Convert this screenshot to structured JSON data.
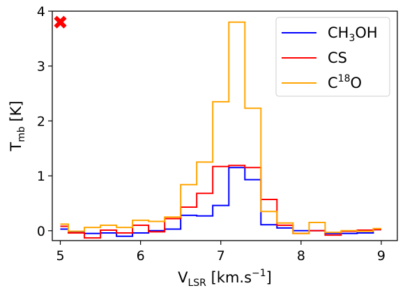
{
  "chart_data": {
    "type": "line",
    "drawstyle": "steps-mid",
    "xlabel": {
      "main": "V",
      "sub": "LSR",
      "rest": " [km.s",
      "sup": "−1",
      "end": "]"
    },
    "ylabel": {
      "main": "T",
      "sub": "mb",
      "rest": " [K]"
    },
    "xlim": [
      4.9,
      9.2
    ],
    "ylim": [
      -0.18,
      4.0
    ],
    "xticks": [
      5,
      6,
      7,
      8,
      9
    ],
    "yticks": [
      0,
      1,
      2,
      3,
      4
    ],
    "legend_position": "top-right",
    "marker": {
      "symbol": "X",
      "x": 5.0,
      "y": 3.8,
      "color": "#ff0000"
    },
    "x": [
      5.0,
      5.2,
      5.4,
      5.6,
      5.8,
      6.0,
      6.2,
      6.4,
      6.6,
      6.8,
      7.0,
      7.2,
      7.4,
      7.6,
      7.8,
      8.0,
      8.2,
      8.4,
      8.6,
      8.8,
      9.0
    ],
    "series": [
      {
        "name": {
          "pre": "CH",
          "sub": "3",
          "post": "OH"
        },
        "color": "#0000ff",
        "values": [
          0.03,
          -0.03,
          -0.05,
          -0.04,
          -0.1,
          -0.04,
          0.0,
          0.03,
          0.28,
          0.27,
          0.46,
          1.15,
          0.93,
          0.11,
          0.05,
          0.0,
          0.0,
          -0.05,
          -0.05,
          -0.04,
          0.02
        ]
      },
      {
        "name": {
          "pre": "CS",
          "sup": "",
          "post": ""
        },
        "color": "#ff0000",
        "values": [
          0.08,
          -0.04,
          -0.13,
          0.01,
          -0.04,
          0.1,
          -0.02,
          0.22,
          0.43,
          0.68,
          1.17,
          1.19,
          1.15,
          0.57,
          0.1,
          -0.05,
          0.0,
          -0.08,
          -0.01,
          0.01,
          0.02
        ]
      },
      {
        "name": {
          "pre": "C",
          "sup": "18",
          "post": "O"
        },
        "color": "#ffa500",
        "values": [
          0.12,
          -0.01,
          0.06,
          0.1,
          0.06,
          0.19,
          0.17,
          0.25,
          0.84,
          1.25,
          2.35,
          3.8,
          2.23,
          0.35,
          0.14,
          -0.05,
          0.15,
          -0.03,
          0.0,
          -0.01,
          0.04
        ]
      }
    ]
  }
}
